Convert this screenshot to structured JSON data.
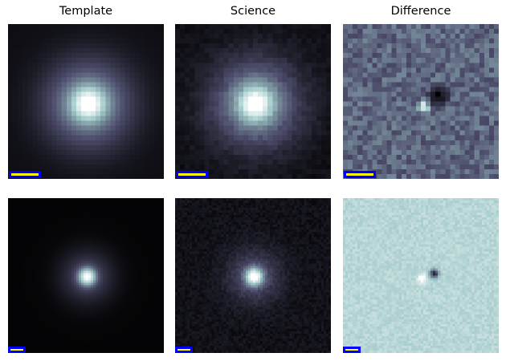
{
  "columns": [
    {
      "title": "Template"
    },
    {
      "title": "Science"
    },
    {
      "title": "Difference"
    }
  ],
  "rows": 2,
  "colormap": "bone",
  "colors": {
    "scale_bar_fill": "#ffff00",
    "scale_bar_border": "#0000ff"
  }
}
